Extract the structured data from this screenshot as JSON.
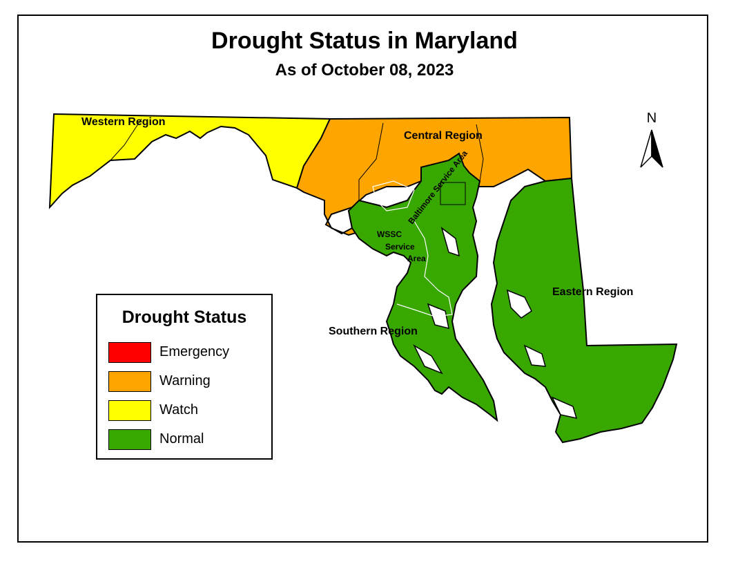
{
  "title": "Drought Status in Maryland",
  "subtitle": "As of October 08, 2023",
  "regions": [
    {
      "name": "Western Region",
      "status": "Watch",
      "color": "#FFFF00"
    },
    {
      "name": "Central Region",
      "status": "Warning",
      "color": "#FFA500"
    },
    {
      "name": "Baltimore Service Area",
      "status": "Normal",
      "color": "#38A800"
    },
    {
      "name": "WSSC Service Area",
      "status": "Normal",
      "color": "#38A800"
    },
    {
      "name": "Southern Region",
      "status": "Normal",
      "color": "#38A800"
    },
    {
      "name": "Eastern Region",
      "status": "Normal",
      "color": "#38A800"
    }
  ],
  "labels": {
    "western": "Western Region",
    "central": "Central Region",
    "baltimore": "Baltimore Service Area",
    "wssc_1": "WSSC",
    "wssc_2": "Service",
    "wssc_3": "Area",
    "southern": "Southern Region",
    "eastern": "Eastern Region"
  },
  "legend": {
    "title": "Drought Status",
    "items": [
      {
        "label": "Emergency",
        "color": "#FF0000"
      },
      {
        "label": "Warning",
        "color": "#FFA500"
      },
      {
        "label": "Watch",
        "color": "#FFFF00"
      },
      {
        "label": "Normal",
        "color": "#38A800"
      }
    ]
  },
  "north_arrow": {
    "letter": "N"
  }
}
